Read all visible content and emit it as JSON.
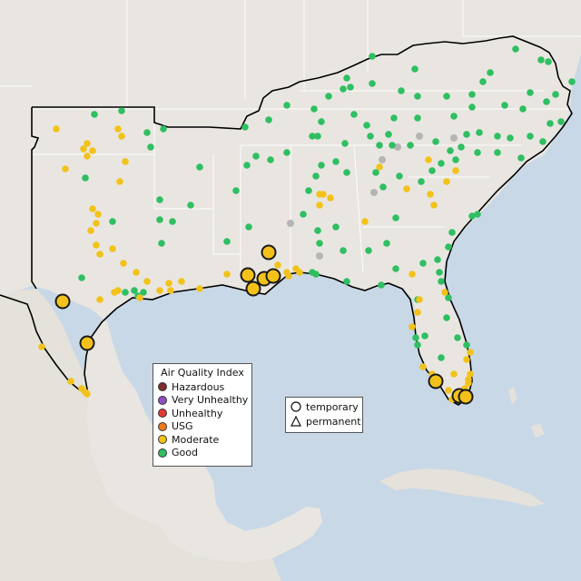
{
  "legend": {
    "title": "Air Quality Index",
    "items": [
      {
        "label": "Hazardous",
        "color": "#7e2d2d"
      },
      {
        "label": "Very Unhealthy",
        "color": "#8f4fc0"
      },
      {
        "label": "Unhealthy",
        "color": "#e03a32"
      },
      {
        "label": "USG",
        "color": "#ee7a1b"
      },
      {
        "label": "Moderate",
        "color": "#f2c21a"
      },
      {
        "label": "Good",
        "color": "#2fbf62"
      }
    ]
  },
  "shape_legend": {
    "items": [
      {
        "label": "temporary",
        "shape": "circle-icon"
      },
      {
        "label": "permanent",
        "shape": "triangle-icon"
      }
    ]
  },
  "colors": {
    "water": "#c8d8e6",
    "land": "#e9e6e1",
    "region_outline": "#000000",
    "borders": "#ffffff",
    "no_data": "#b5b5b5"
  }
}
